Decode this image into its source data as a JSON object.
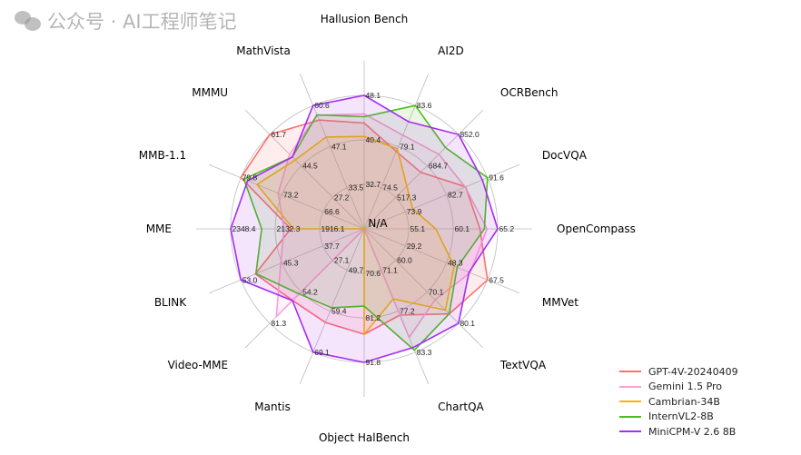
{
  "chart_data": {
    "type": "radar",
    "center_label": "N/A",
    "axes": [
      {
        "name": "Hallusion Bench",
        "ticks": [
          "32.7",
          "40.4",
          "48.1"
        ]
      },
      {
        "name": "AI2D",
        "ticks": [
          "74.5",
          "79.1",
          "83.6"
        ]
      },
      {
        "name": "OCRBench",
        "ticks": [
          "517.3",
          "684.7",
          "852.0"
        ]
      },
      {
        "name": "DocVQA",
        "ticks": [
          "73.9",
          "82.7",
          "91.6"
        ]
      },
      {
        "name": "OpenCompass",
        "ticks": [
          "55.1",
          "60.1",
          "65.2"
        ]
      },
      {
        "name": "MMVet",
        "ticks": [
          "29.2",
          "48.3",
          "67.5"
        ]
      },
      {
        "name": "TextVQA",
        "ticks": [
          "60.0",
          "70.1",
          "80.1"
        ]
      },
      {
        "name": "ChartQA",
        "ticks": [
          "71.1",
          "77.2",
          "83.3"
        ]
      },
      {
        "name": "Object HalBench",
        "ticks": [
          "70.6",
          "81.2",
          "91.8"
        ]
      },
      {
        "name": "Mantis",
        "ticks": [
          "49.7",
          "59.4",
          "69.1"
        ]
      },
      {
        "name": "Video-MME",
        "ticks": [
          "27.1",
          "54.2",
          "81.3"
        ]
      },
      {
        "name": "BLINK",
        "ticks": [
          "37.7",
          "45.3",
          "53.0"
        ]
      },
      {
        "name": "MME",
        "ticks": [
          "1916.1",
          "2132.3",
          "2348.4"
        ]
      },
      {
        "name": "MMB-1.1",
        "ticks": [
          "66.6",
          "73.2",
          "79.8"
        ]
      },
      {
        "name": "MMMU",
        "ticks": [
          "27.2",
          "44.5",
          "61.7"
        ]
      },
      {
        "name": "MathVista",
        "ticks": [
          "33.5",
          "47.1",
          "60.6"
        ]
      }
    ],
    "series": [
      {
        "name": "GPT-4V-20240409",
        "color": "#ff6f6f",
        "values": [
          43.3,
          78.5,
          651,
          86.9,
          63.2,
          67.5,
          77.1,
          77.8,
          85.1,
          62.1,
          61.6,
          50.3,
          2057,
          79.8,
          61.7,
          55.8
        ]
      },
      {
        "name": "Gemini 1.5 Pro",
        "color": "#ff9ed8",
        "values": [
          44.9,
          80.3,
          747,
          86.8,
          64.0,
          59.4,
          72.6,
          81.1,
          null,
          null,
          75.6,
          45.6,
          2089,
          73.8,
          50.8,
          57.4
        ]
      },
      {
        "name": "Cambrian-34B",
        "color": "#ffb300",
        "values": [
          41.0,
          78.8,
          577,
          75.5,
          58.2,
          52.0,
          75.9,
          75.4,
          85.1,
          null,
          null,
          null,
          2044,
          77.2,
          47.7,
          50.2
        ]
      },
      {
        "name": "InternVL2-8B",
        "color": "#4cbf1a",
        "values": [
          44.4,
          83.6,
          782,
          91.6,
          63.7,
          53.4,
          77.1,
          83.0,
          78.4,
          58.6,
          56.0,
          50.2,
          2198,
          79.3,
          49.3,
          57.5
        ]
      },
      {
        "name": "MiniCPM-V 2.6 8B",
        "color": "#a52cf2",
        "values": [
          48.1,
          81.8,
          852.0,
          90.5,
          65.2,
          58.9,
          80.1,
          82.6,
          91.8,
          69.1,
          61.8,
          53.0,
          2348.4,
          78.7,
          49.3,
          60.6
        ]
      }
    ],
    "legend_position": "bottom-right",
    "grid": true
  },
  "watermark": "公众号 · AI工程师笔记"
}
